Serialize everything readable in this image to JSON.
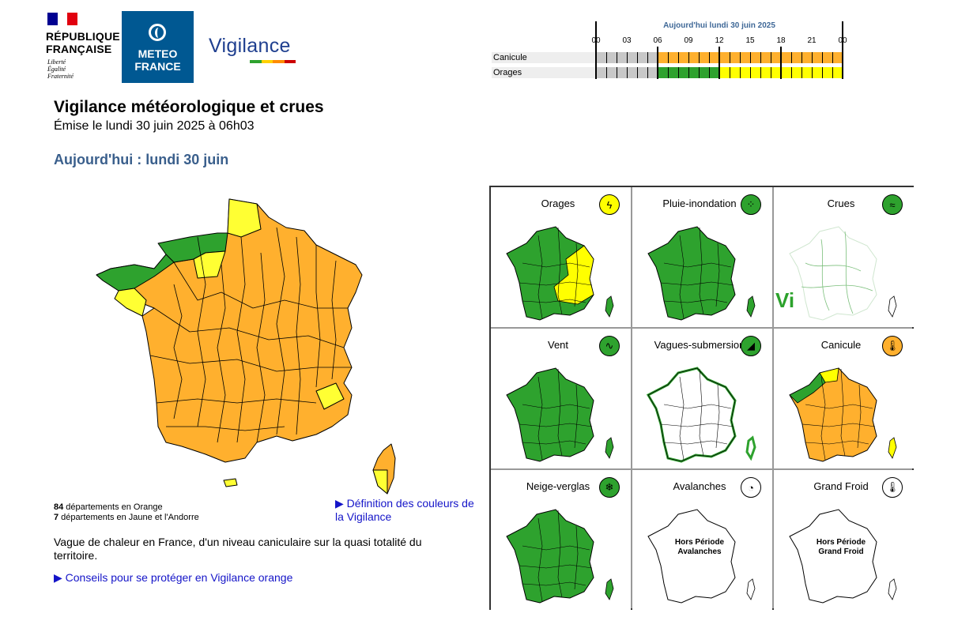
{
  "header": {
    "republic_line1": "RÉPUBLIQUE",
    "republic_line2": "FRANÇAISE",
    "motto_1": "Liberté",
    "motto_2": "Égalité",
    "motto_3": "Fraternité",
    "meteo_line1": "METEO",
    "meteo_line2": "FRANCE",
    "vigilance_word": "Vigilance"
  },
  "colors": {
    "green": "#2ea22e",
    "yellow": "#ffff00",
    "orange": "#ffb02e",
    "red": "#cc0000",
    "grey": "#c8c8c8",
    "link": "#1414c8",
    "heading_blue": "#3a5f8c"
  },
  "timeline": {
    "title": "Aujourd'hui lundi 30 juin 2025",
    "hours": [
      "00",
      "03",
      "06",
      "09",
      "12",
      "15",
      "18",
      "21",
      "00"
    ],
    "rows": [
      {
        "label": "Canicule",
        "segments": [
          {
            "from": 0,
            "to": 6,
            "level": "grey"
          },
          {
            "from": 6,
            "to": 24,
            "level": "orange"
          }
        ]
      },
      {
        "label": "Orages",
        "segments": [
          {
            "from": 0,
            "to": 6,
            "level": "grey"
          },
          {
            "from": 6,
            "to": 12,
            "level": "green"
          },
          {
            "from": 12,
            "to": 24,
            "level": "yellow"
          }
        ]
      }
    ]
  },
  "page": {
    "title": "Vigilance météorologique et crues",
    "issued": "Émise le lundi 30 juin 2025 à 06h03",
    "today": "Aujourd'hui : lundi 30 juin"
  },
  "info": {
    "orange_count": "84",
    "orange_text": " départements en Orange",
    "yellow_count": "7",
    "yellow_text": " départements en Jaune et l'Andorre",
    "definition_link": "▶ Définition des couleurs de la Vigilance",
    "description": "Vague de chaleur en France, d'un niveau caniculaire sur la quasi totalité du territoire.",
    "advice_link": "▶ Conseils pour se protéger en Vigilance orange"
  },
  "phenomena": [
    {
      "name": "Orages",
      "level": "yellow",
      "icon": "lightning-icon",
      "glyph": "ϟ",
      "map": "mixed-yellow"
    },
    {
      "name": "Pluie-inondation",
      "level": "green",
      "icon": "rain-icon",
      "glyph": "⁘",
      "map": "green"
    },
    {
      "name": "Crues",
      "level": "green",
      "icon": "waves-icon",
      "glyph": "≈",
      "map": "rivers"
    },
    {
      "name": "Vent",
      "level": "green",
      "icon": "wind-icon",
      "glyph": "∿",
      "map": "green"
    },
    {
      "name": "Vagues-submersion",
      "level": "green",
      "icon": "wave-icon",
      "glyph": "◢",
      "map": "white-coast"
    },
    {
      "name": "Canicule",
      "level": "orange",
      "icon": "thermometer-icon",
      "glyph": "🌡",
      "map": "orange"
    },
    {
      "name": "Neige-verglas",
      "level": "green",
      "icon": "snowflake-icon",
      "glyph": "❄",
      "map": "green"
    },
    {
      "name": "Avalanches",
      "level": "none",
      "icon": "avalanche-icon",
      "glyph": "◔",
      "map": "outline",
      "off_line1": "Hors Période",
      "off_line2": "Avalanches"
    },
    {
      "name": "Grand Froid",
      "level": "none",
      "icon": "thermometer-cold-icon",
      "glyph": "🌡",
      "map": "outline",
      "off_line1": "Hors Période",
      "off_line2": "Grand Froid"
    }
  ],
  "crues_logo": "Vi"
}
